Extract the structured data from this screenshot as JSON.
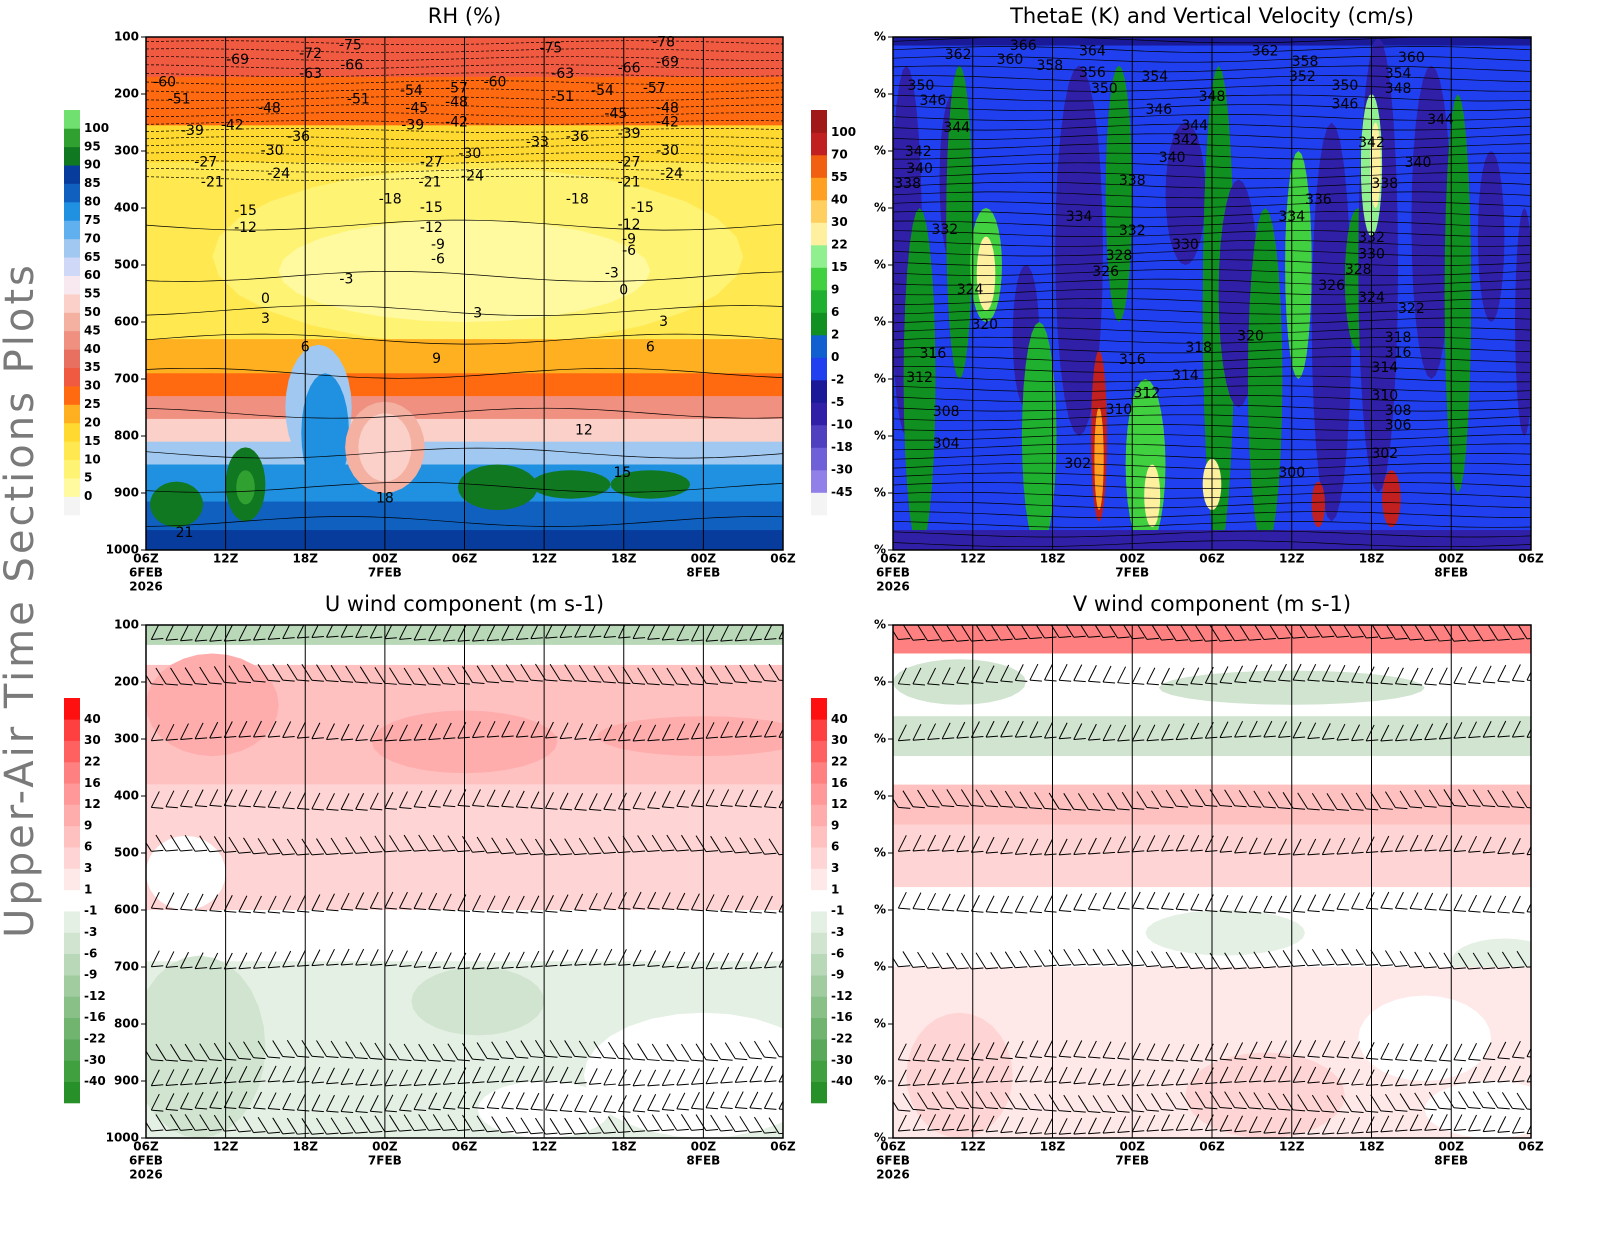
{
  "page_title": "Upper-Air Time Sections Plots",
  "chart_data": [
    {
      "type": "contour",
      "title": "RH (%)",
      "xlim": [
        0,
        48
      ],
      "xticks": [
        {
          "value": 0,
          "label": "06Z"
        },
        {
          "value": 6,
          "label": "12Z"
        },
        {
          "value": 12,
          "label": "18Z"
        },
        {
          "value": 18,
          "label": "00Z"
        },
        {
          "value": 24,
          "label": "06Z"
        },
        {
          "value": 30,
          "label": "12Z"
        },
        {
          "value": 36,
          "label": "18Z"
        },
        {
          "value": 42,
          "label": "00Z"
        },
        {
          "value": 48,
          "label": "06Z"
        }
      ],
      "date_labels": [
        {
          "value": 0,
          "label": "6FEB"
        },
        {
          "value": 18,
          "label": "7FEB"
        },
        {
          "value": 42,
          "label": "8FEB"
        }
      ],
      "year_label": "2026",
      "ylim": [
        1000,
        100
      ],
      "yticks": [
        100,
        200,
        300,
        400,
        500,
        600,
        700,
        800,
        900,
        1000
      ],
      "colorbar": {
        "levels": [
          0,
          5,
          10,
          15,
          20,
          25,
          30,
          35,
          40,
          45,
          50,
          55,
          60,
          65,
          70,
          75,
          80,
          85,
          90,
          95,
          100
        ],
        "colors": [
          "#f4f4f4",
          "#fffaa0",
          "#fff373",
          "#ffe850",
          "#ffd830",
          "#ffb020",
          "#ff6a10",
          "#f05a40",
          "#e87060",
          "#f09080",
          "#f4b0a0",
          "#fad0c8",
          "#f8e8f0",
          "#d0d8f8",
          "#a0c8f0",
          "#60b0f0",
          "#2090e0",
          "#1060c0",
          "#083c9c",
          "#107820",
          "#30a030",
          "#70e070"
        ]
      },
      "contour_labels": [
        -60,
        -51,
        -69,
        -72,
        -75,
        -63,
        -66,
        -48,
        -39,
        -42,
        -36,
        -30,
        -27,
        -21,
        -24,
        -15,
        -12,
        -51,
        -54,
        -57,
        -60,
        -45,
        -48,
        -39,
        -42,
        -30,
        -27,
        -21,
        -24,
        -18,
        -15,
        -12,
        -9,
        -6,
        -3,
        0,
        3,
        6,
        9,
        12,
        15,
        18,
        21,
        -75,
        -63,
        -51,
        -54,
        -33,
        -36,
        -18,
        -78,
        -69,
        -66,
        -57,
        -48,
        -45,
        -42,
        -39,
        -30,
        -27,
        -24,
        -21,
        -15,
        -12,
        -9,
        -6,
        -3,
        0,
        3,
        6,
        3
      ]
    },
    {
      "type": "contour",
      "title": "ThetaE (K) and Vertical Velocity (cm/s)",
      "xlim": [
        0,
        48
      ],
      "xticks": [
        {
          "value": 0,
          "label": "06Z"
        },
        {
          "value": 6,
          "label": "12Z"
        },
        {
          "value": 12,
          "label": "18Z"
        },
        {
          "value": 18,
          "label": "00Z"
        },
        {
          "value": 24,
          "label": "06Z"
        },
        {
          "value": 30,
          "label": "12Z"
        },
        {
          "value": 36,
          "label": "18Z"
        },
        {
          "value": 42,
          "label": "00Z"
        },
        {
          "value": 48,
          "label": "06Z"
        }
      ],
      "date_labels": [
        {
          "value": 0,
          "label": "6FEB"
        },
        {
          "value": 18,
          "label": "7FEB"
        },
        {
          "value": 42,
          "label": "8FEB"
        }
      ],
      "year_label": "2026",
      "ylim": [
        1000,
        100
      ],
      "yticks": [
        {
          "value": 100,
          "label": "%"
        },
        {
          "value": 200,
          "label": "%"
        },
        {
          "value": 300,
          "label": "%"
        },
        {
          "value": 400,
          "label": "%"
        },
        {
          "value": 500,
          "label": "%"
        },
        {
          "value": 600,
          "label": "%"
        },
        {
          "value": 700,
          "label": "%"
        },
        {
          "value": 800,
          "label": "%"
        },
        {
          "value": 900,
          "label": "%"
        },
        {
          "value": 1000,
          "label": "%"
        }
      ],
      "colorbar": {
        "levels": [
          -45,
          -30,
          -18,
          -10,
          -5,
          -2,
          0,
          2,
          6,
          9,
          15,
          22,
          30,
          40,
          55,
          70,
          100
        ],
        "colors": [
          "#f4f4f4",
          "#9080e8",
          "#7060d8",
          "#5040c0",
          "#3020a8",
          "#1a1a98",
          "#2040f0",
          "#1060d0",
          "#109020",
          "#20b030",
          "#40d040",
          "#90f090",
          "#fff0a0",
          "#ffd060",
          "#ffa020",
          "#f06010",
          "#c02020",
          "#a01818"
        ]
      },
      "contour_labels": [
        362,
        366,
        360,
        364,
        358,
        356,
        350,
        354,
        348,
        346,
        344,
        342,
        340,
        338,
        336,
        334,
        332,
        330,
        328,
        326,
        324,
        320,
        316,
        318,
        314,
        312,
        310,
        320,
        350,
        346,
        344,
        342,
        340,
        338,
        332,
        316,
        312,
        308,
        304,
        302,
        300,
        362,
        358,
        352,
        350,
        346,
        360,
        354,
        348,
        344,
        342,
        340,
        338,
        334,
        332,
        330,
        328,
        326,
        324,
        322,
        318,
        316,
        314,
        310,
        308,
        306,
        302
      ]
    },
    {
      "type": "contour",
      "title": "U wind component (m s-1)",
      "xlim": [
        0,
        48
      ],
      "xticks": [
        {
          "value": 0,
          "label": "06Z"
        },
        {
          "value": 6,
          "label": "12Z"
        },
        {
          "value": 12,
          "label": "18Z"
        },
        {
          "value": 18,
          "label": "00Z"
        },
        {
          "value": 24,
          "label": "06Z"
        },
        {
          "value": 30,
          "label": "12Z"
        },
        {
          "value": 36,
          "label": "18Z"
        },
        {
          "value": 42,
          "label": "00Z"
        },
        {
          "value": 48,
          "label": "06Z"
        }
      ],
      "date_labels": [
        {
          "value": 0,
          "label": "6FEB"
        },
        {
          "value": 18,
          "label": "7FEB"
        },
        {
          "value": 42,
          "label": "8FEB"
        }
      ],
      "year_label": "2026",
      "ylim": [
        1000,
        100
      ],
      "yticks": [
        100,
        200,
        300,
        400,
        500,
        600,
        700,
        800,
        900,
        1000
      ],
      "colorbar": {
        "levels": [
          -40,
          -30,
          -22,
          -16,
          -12,
          -9,
          -6,
          -3,
          -1,
          1,
          3,
          6,
          9,
          12,
          16,
          22,
          30,
          40
        ],
        "colors": [
          "#289028",
          "#40a040",
          "#5aa85a",
          "#70b470",
          "#88c088",
          "#a0cca0",
          "#b8d8b8",
          "#d0e4d0",
          "#e4f0e4",
          "#ffffff",
          "#ffe8e8",
          "#ffd4d4",
          "#ffc0c0",
          "#ffacac",
          "#ff9898",
          "#ff8080",
          "#ff6060",
          "#ff4040",
          "#ff1010"
        ]
      }
    },
    {
      "type": "contour",
      "title": "V wind component (m s-1)",
      "xlim": [
        0,
        48
      ],
      "xticks": [
        {
          "value": 0,
          "label": "06Z"
        },
        {
          "value": 6,
          "label": "12Z"
        },
        {
          "value": 12,
          "label": "18Z"
        },
        {
          "value": 18,
          "label": "00Z"
        },
        {
          "value": 24,
          "label": "06Z"
        },
        {
          "value": 30,
          "label": "12Z"
        },
        {
          "value": 36,
          "label": "18Z"
        },
        {
          "value": 42,
          "label": "00Z"
        },
        {
          "value": 48,
          "label": "06Z"
        }
      ],
      "date_labels": [
        {
          "value": 0,
          "label": "6FEB"
        },
        {
          "value": 18,
          "label": "7FEB"
        },
        {
          "value": 42,
          "label": "8FEB"
        }
      ],
      "year_label": "2026",
      "ylim": [
        1000,
        100
      ],
      "yticks": [
        {
          "value": 100,
          "label": "%"
        },
        {
          "value": 200,
          "label": "%"
        },
        {
          "value": 300,
          "label": "%"
        },
        {
          "value": 400,
          "label": "%"
        },
        {
          "value": 500,
          "label": "%"
        },
        {
          "value": 600,
          "label": "%"
        },
        {
          "value": 700,
          "label": "%"
        },
        {
          "value": 800,
          "label": "%"
        },
        {
          "value": 900,
          "label": "%"
        },
        {
          "value": 1000,
          "label": "%"
        }
      ],
      "colorbar": {
        "levels": [
          -40,
          -30,
          -22,
          -16,
          -12,
          -9,
          -6,
          -3,
          -1,
          1,
          3,
          6,
          9,
          12,
          16,
          22,
          30,
          40
        ],
        "colors": [
          "#289028",
          "#40a040",
          "#5aa85a",
          "#70b470",
          "#88c088",
          "#a0cca0",
          "#b8d8b8",
          "#d0e4d0",
          "#e4f0e4",
          "#ffffff",
          "#ffe8e8",
          "#ffd4d4",
          "#ffc0c0",
          "#ffacac",
          "#ff9898",
          "#ff8080",
          "#ff6060",
          "#ff4040",
          "#ff1010"
        ]
      }
    }
  ]
}
